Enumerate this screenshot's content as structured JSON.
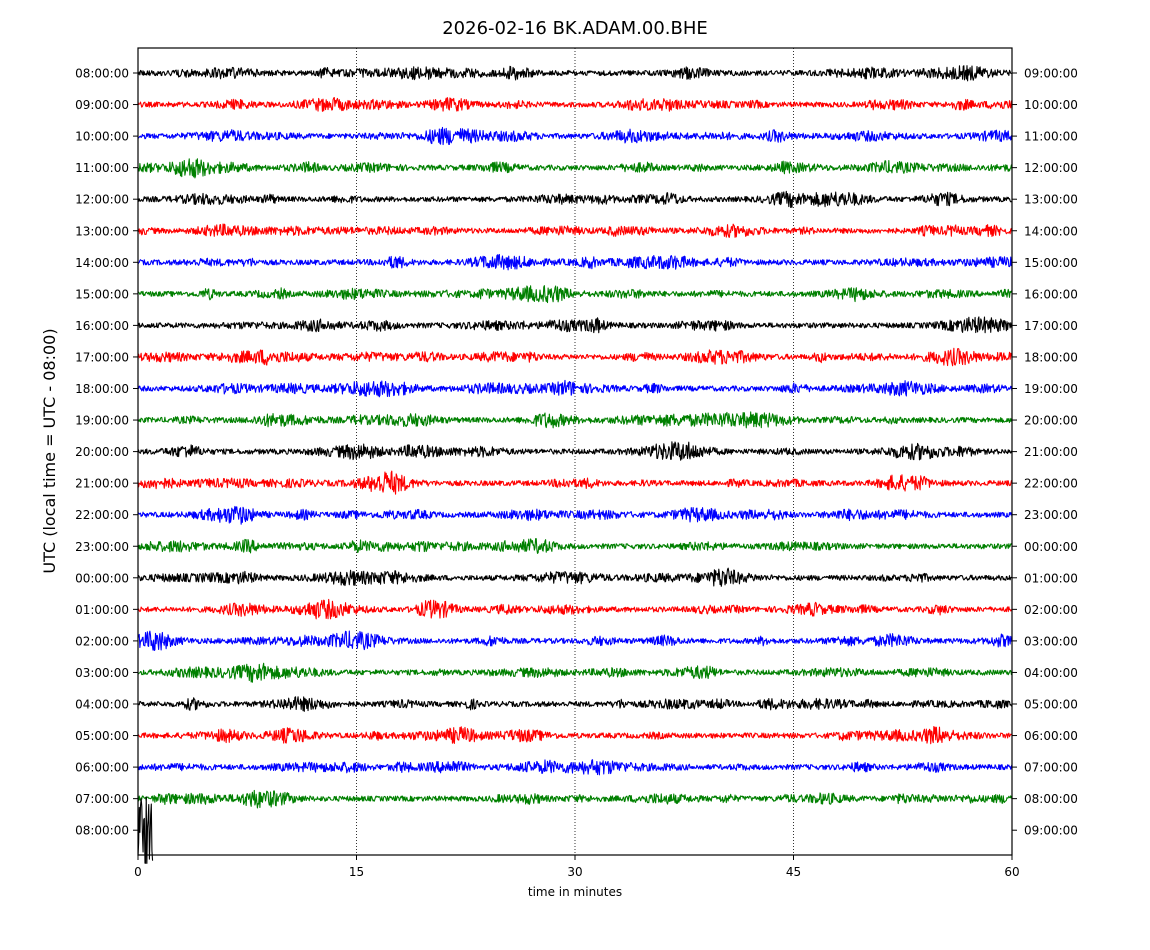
{
  "chart_data": {
    "type": "line",
    "title": "2026-02-16 BK.ADAM.00.BHE",
    "ylabel": "UTC (local time = UTC - 08:00)",
    "xlabel": "time in minutes",
    "x_ticks": [
      0,
      15,
      30,
      45,
      60
    ],
    "xlim": [
      0,
      60
    ],
    "grid": "vertical dotted at 15, 30, 45",
    "left_tick_labels": [
      "08:00:00",
      "09:00:00",
      "10:00:00",
      "11:00:00",
      "12:00:00",
      "13:00:00",
      "14:00:00",
      "15:00:00",
      "16:00:00",
      "17:00:00",
      "18:00:00",
      "19:00:00",
      "20:00:00",
      "21:00:00",
      "22:00:00",
      "23:00:00",
      "00:00:00",
      "01:00:00",
      "02:00:00",
      "03:00:00",
      "04:00:00",
      "05:00:00",
      "06:00:00",
      "07:00:00",
      "08:00:00"
    ],
    "right_tick_labels": [
      "09:00:00",
      "10:00:00",
      "11:00:00",
      "12:00:00",
      "13:00:00",
      "14:00:00",
      "15:00:00",
      "16:00:00",
      "17:00:00",
      "18:00:00",
      "19:00:00",
      "20:00:00",
      "21:00:00",
      "22:00:00",
      "23:00:00",
      "00:00:00",
      "01:00:00",
      "02:00:00",
      "03:00:00",
      "04:00:00",
      "05:00:00",
      "06:00:00",
      "07:00:00",
      "08:00:00",
      "09:00:00"
    ],
    "trace_colors": [
      "#000000",
      "#ff0000",
      "#0000ff",
      "#008000"
    ],
    "last_trace_end_minutes": 1.0
  }
}
